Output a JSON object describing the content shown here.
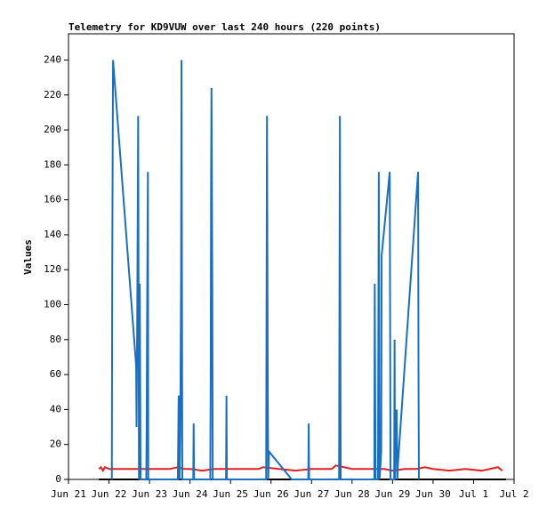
{
  "chart_data": {
    "type": "line",
    "title": "Telemetry for KD9VUW over last 240 hours (220 points)",
    "y_label": "Values",
    "xlim": [
      0,
      11
    ],
    "xticks": [
      {
        "value": 0,
        "label": "Jun 21"
      },
      {
        "value": 1,
        "label": "Jun 22"
      },
      {
        "value": 2,
        "label": "Jun 23"
      },
      {
        "value": 3,
        "label": "Jun 24"
      },
      {
        "value": 4,
        "label": "Jun 25"
      },
      {
        "value": 5,
        "label": "Jun 26"
      },
      {
        "value": 6,
        "label": "Jun 27"
      },
      {
        "value": 7,
        "label": "Jun 28"
      },
      {
        "value": 8,
        "label": "Jun 29"
      },
      {
        "value": 9,
        "label": "Jun 30"
      },
      {
        "value": 10,
        "label": "Jul 1"
      },
      {
        "value": 11,
        "label": "Jul 2"
      }
    ],
    "ylim": [
      0,
      255
    ],
    "yticks": [
      0,
      20,
      40,
      60,
      80,
      100,
      120,
      140,
      160,
      180,
      200,
      220,
      240
    ],
    "series": [
      {
        "color": "#000000",
        "x": [
          0.75,
          10.8
        ],
        "values": [
          0,
          0
        ]
      },
      {
        "color": "#e02020",
        "x": [
          0.75,
          0.8,
          0.85,
          0.9,
          1.0,
          1.5,
          2.0,
          2.5,
          2.7,
          2.85,
          3.0,
          3.3,
          3.6,
          4.0,
          4.7,
          4.8,
          5.2,
          5.6,
          6.0,
          6.5,
          6.6,
          6.8,
          7.0,
          7.5,
          7.8,
          8.0,
          8.3,
          8.6,
          8.8,
          9.0,
          9.4,
          9.8,
          10.2,
          10.6,
          10.71
        ],
        "values": [
          6,
          7,
          5,
          7,
          6,
          6,
          6,
          6,
          7,
          6,
          6,
          5,
          6,
          6,
          6,
          7,
          6,
          5,
          6,
          6,
          8,
          7,
          6,
          6,
          6,
          5,
          6,
          6,
          7,
          6,
          5,
          6,
          5,
          7,
          5
        ]
      },
      {
        "color": "#1a6fc4",
        "x": [
          1.07,
          1.08,
          1.1,
          1.67,
          1.68,
          1.7,
          1.72,
          1.74,
          1.76,
          1.78,
          1.92,
          1.93,
          1.94,
          1.96,
          1.97,
          2.7,
          2.72,
          2.74,
          2.76,
          2.78,
          2.79,
          2.81,
          3.08,
          3.09,
          3.1,
          3.5,
          3.51,
          3.52,
          3.53,
          3.55,
          3.56,
          3.89,
          3.9,
          3.91,
          4.88,
          4.89,
          4.9,
          4.92,
          4.93,
          4.95,
          5.51,
          5.92,
          5.93,
          5.94,
          6.68,
          6.69,
          6.7,
          6.72,
          7.55,
          7.56,
          7.58,
          7.64,
          7.65,
          7.66,
          7.68,
          7.72,
          7.73,
          7.93,
          7.95,
          8.04,
          8.05,
          8.06,
          8.1,
          8.12,
          8.13,
          8.63,
          8.64,
          8.65
        ],
        "values": [
          0,
          120,
          240,
          65,
          30,
          105,
          208,
          0,
          112,
          0,
          0,
          30,
          88,
          176,
          0,
          0,
          48,
          0,
          25,
          120,
          240,
          0,
          0,
          32,
          0,
          0,
          55,
          168,
          224,
          112,
          0,
          0,
          48,
          0,
          0,
          104,
          208,
          48,
          0,
          16,
          0,
          0,
          32,
          0,
          0,
          104,
          208,
          0,
          0,
          112,
          0,
          0,
          88,
          176,
          0,
          16,
          128,
          176,
          0,
          0,
          80,
          0,
          40,
          0,
          8,
          176,
          64,
          0
        ]
      }
    ]
  }
}
